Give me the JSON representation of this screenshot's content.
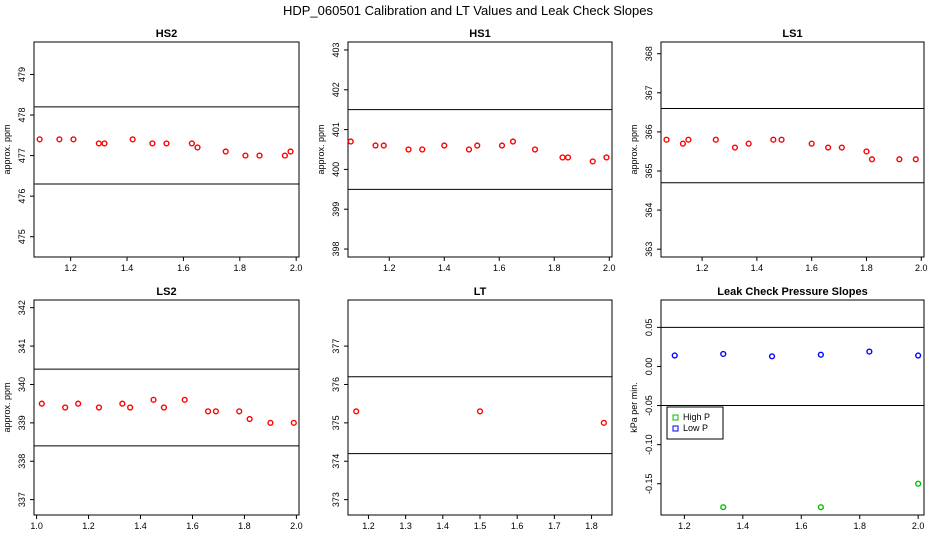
{
  "title": "HDP_060501  Calibration and LT Values and Leak Check Slopes",
  "colors": {
    "red": "#ff0000",
    "green": "#00c000",
    "blue": "#0000ff"
  },
  "chart_data": [
    {
      "type": "scatter",
      "title": "HS2",
      "ylabel": "approx. ppm",
      "xlim": [
        1.07,
        2.01
      ],
      "ylim": [
        474.5,
        479.8
      ],
      "xticks": [
        "1.2",
        "1.4",
        "1.6",
        "1.8",
        "2.0"
      ],
      "yticks": [
        "475",
        "476",
        "477",
        "478",
        "479"
      ],
      "hlines": [
        478.2,
        476.3
      ],
      "series": [
        {
          "color": "red",
          "x": [
            1.09,
            1.16,
            1.21,
            1.3,
            1.32,
            1.42,
            1.49,
            1.54,
            1.63,
            1.65,
            1.75,
            1.82,
            1.87,
            1.96,
            1.98
          ],
          "y": [
            477.4,
            477.4,
            477.4,
            477.3,
            477.3,
            477.4,
            477.3,
            477.3,
            477.3,
            477.2,
            477.1,
            477.0,
            477.0,
            477.0,
            477.1
          ]
        }
      ]
    },
    {
      "type": "scatter",
      "title": "HS1",
      "ylabel": "approx. ppm",
      "xlim": [
        1.05,
        2.01
      ],
      "ylim": [
        397.8,
        403.2
      ],
      "xticks": [
        "1.2",
        "1.4",
        "1.6",
        "1.8",
        "2.0"
      ],
      "yticks": [
        "398",
        "399",
        "400",
        "401",
        "402",
        "403"
      ],
      "hlines": [
        401.5,
        399.5
      ],
      "series": [
        {
          "color": "red",
          "x": [
            1.06,
            1.15,
            1.18,
            1.27,
            1.32,
            1.4,
            1.49,
            1.52,
            1.61,
            1.65,
            1.73,
            1.83,
            1.85,
            1.94,
            1.99
          ],
          "y": [
            400.7,
            400.6,
            400.6,
            400.5,
            400.5,
            400.6,
            400.5,
            400.6,
            400.6,
            400.7,
            400.5,
            400.3,
            400.3,
            400.2,
            400.3
          ]
        }
      ]
    },
    {
      "type": "scatter",
      "title": "LS1",
      "ylabel": "approx. ppm",
      "xlim": [
        1.05,
        2.01
      ],
      "ylim": [
        362.8,
        368.3
      ],
      "xticks": [
        "1.2",
        "1.4",
        "1.6",
        "1.8",
        "2.0"
      ],
      "yticks": [
        "363",
        "364",
        "365",
        "366",
        "367",
        "368"
      ],
      "hlines": [
        366.6,
        364.7
      ],
      "series": [
        {
          "color": "red",
          "x": [
            1.07,
            1.13,
            1.15,
            1.25,
            1.32,
            1.37,
            1.46,
            1.49,
            1.6,
            1.66,
            1.71,
            1.8,
            1.82,
            1.92,
            1.98
          ],
          "y": [
            365.8,
            365.7,
            365.8,
            365.8,
            365.6,
            365.7,
            365.8,
            365.8,
            365.7,
            365.6,
            365.6,
            365.5,
            365.3,
            365.3,
            365.3
          ]
        }
      ]
    },
    {
      "type": "scatter",
      "title": "LS2",
      "ylabel": "approx. ppm",
      "xlim": [
        0.99,
        2.01
      ],
      "ylim": [
        336.6,
        342.2
      ],
      "xticks": [
        "1.0",
        "1.2",
        "1.4",
        "1.6",
        "1.8",
        "2.0"
      ],
      "yticks": [
        "337",
        "338",
        "339",
        "340",
        "341",
        "342"
      ],
      "hlines": [
        340.4,
        338.4
      ],
      "series": [
        {
          "color": "red",
          "x": [
            1.02,
            1.11,
            1.16,
            1.24,
            1.33,
            1.36,
            1.45,
            1.49,
            1.57,
            1.66,
            1.69,
            1.78,
            1.82,
            1.9,
            1.99
          ],
          "y": [
            339.5,
            339.4,
            339.5,
            339.4,
            339.5,
            339.4,
            339.6,
            339.4,
            339.6,
            339.3,
            339.3,
            339.3,
            339.1,
            339.0,
            339.0
          ]
        }
      ]
    },
    {
      "type": "scatter",
      "title": "LT",
      "ylabel": "",
      "xlim": [
        1.145,
        1.855
      ],
      "ylim": [
        372.6,
        378.2
      ],
      "xticks": [
        "1.2",
        "1.3",
        "1.4",
        "1.5",
        "1.6",
        "1.7",
        "1.8"
      ],
      "yticks": [
        "373",
        "374",
        "375",
        "376",
        "377"
      ],
      "hlines": [
        376.2,
        374.2
      ],
      "series": [
        {
          "color": "red",
          "x": [
            1.167,
            1.5,
            1.833
          ],
          "y": [
            375.3,
            375.3,
            375.0
          ]
        }
      ]
    },
    {
      "type": "scatter",
      "title": "Leak Check Pressure Slopes",
      "ylabel": "kPa per min.",
      "xlim": [
        1.12,
        2.02
      ],
      "ylim": [
        -0.19,
        0.085
      ],
      "xticks": [
        "1.2",
        "1.4",
        "1.6",
        "1.8",
        "2.0"
      ],
      "yticks": [
        "-0.15",
        "-0.10",
        "-0.05",
        "0.00",
        "0.05"
      ],
      "hlines": [
        0.05,
        -0.05
      ],
      "series": [
        {
          "name": "High P",
          "color": "green",
          "x": [
            1.333,
            1.667,
            2.0
          ],
          "y": [
            -0.18,
            -0.18,
            -0.15
          ]
        },
        {
          "name": "Low P",
          "color": "blue",
          "x": [
            1.167,
            1.333,
            1.5,
            1.667,
            1.833,
            2.0
          ],
          "y": [
            0.014,
            0.016,
            0.013,
            0.015,
            0.019,
            0.014
          ]
        }
      ],
      "legend": "center-left"
    }
  ]
}
